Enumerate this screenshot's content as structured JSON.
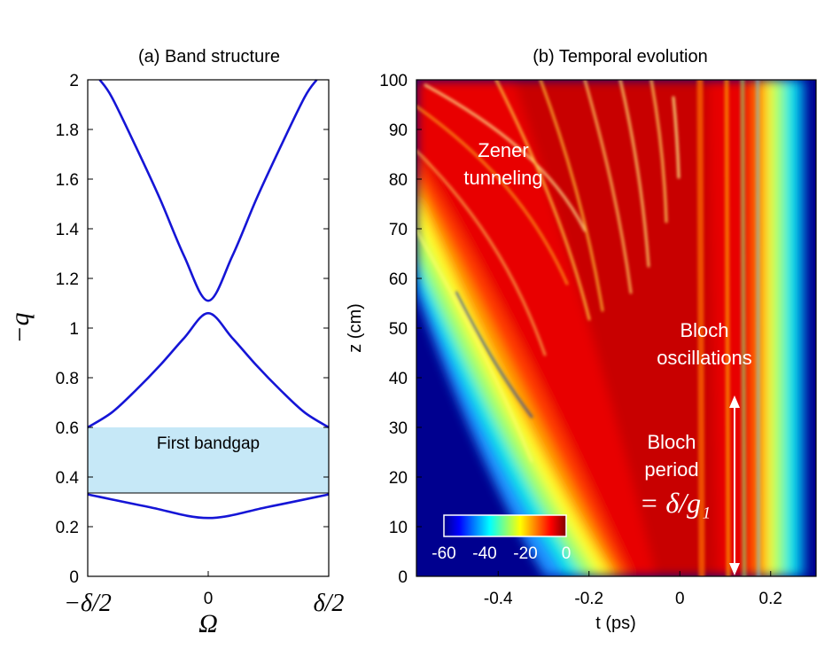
{
  "chart_data": [
    {
      "type": "line",
      "title": "(a) Band structure",
      "xlabel": "Ω",
      "ylabel": "−q",
      "xlim": [
        -0.5,
        0.5
      ],
      "ylim": [
        0,
        2
      ],
      "x_ticks": [
        {
          "value": -0.5,
          "label": "−δ/2"
        },
        {
          "value": 0,
          "label": "0"
        },
        {
          "value": 0.5,
          "label": "δ/2"
        }
      ],
      "y_ticks": [
        "0",
        "0.2",
        "0.4",
        "0.6",
        "0.8",
        "1",
        "1.2",
        "1.4",
        "1.6",
        "1.8",
        "2"
      ],
      "y_tick_values": [
        0,
        0.2,
        0.4,
        0.6,
        0.8,
        1,
        1.2,
        1.4,
        1.6,
        1.8,
        2
      ],
      "series_color": "#1515d6",
      "series": [
        {
          "x": [
            -0.5,
            -0.25,
            0,
            0.25,
            0.5
          ],
          "y": [
            0.33,
            0.28,
            0.235,
            0.28,
            0.33
          ]
        },
        {
          "x": [
            -0.5,
            -0.4,
            -0.3,
            -0.2,
            -0.1,
            0,
            0.1,
            0.2,
            0.3,
            0.4,
            0.5
          ],
          "y": [
            0.6,
            0.66,
            0.75,
            0.85,
            0.96,
            1.06,
            0.96,
            0.85,
            0.75,
            0.66,
            0.6
          ]
        },
        {
          "x": [
            -0.45,
            -0.4,
            -0.3,
            -0.2,
            -0.1,
            0,
            0.1,
            0.2,
            0.3,
            0.4,
            0.45
          ],
          "y": [
            2.0,
            1.93,
            1.73,
            1.52,
            1.29,
            1.11,
            1.29,
            1.52,
            1.73,
            1.93,
            2.0
          ]
        }
      ],
      "bandgap": {
        "label": "First bandgap",
        "y_min": 0.34,
        "y_max": 0.6,
        "color": "#c6e8f7"
      }
    },
    {
      "type": "heatmap",
      "title": "(b) Temporal evolution",
      "xlabel": "t (ps)",
      "ylabel": "z (cm)",
      "xlim": [
        -0.58,
        0.3
      ],
      "ylim": [
        0,
        100
      ],
      "x_ticks": [
        "-0.4",
        "-0.2",
        "0",
        "0.2"
      ],
      "x_tick_values": [
        -0.4,
        -0.2,
        0,
        0.2
      ],
      "y_ticks": [
        "0",
        "10",
        "20",
        "30",
        "40",
        "50",
        "60",
        "70",
        "80",
        "90",
        "100"
      ],
      "y_tick_values": [
        0,
        10,
        20,
        30,
        40,
        50,
        60,
        70,
        80,
        90,
        100
      ],
      "colorbar": {
        "ticks": [
          "-60",
          "-40",
          "-20",
          "0"
        ],
        "tick_values": [
          -60,
          -40,
          -20,
          0
        ],
        "range": [
          -60,
          0
        ]
      },
      "annotations": [
        {
          "lines": [
            "Zener",
            "tunneling"
          ]
        },
        {
          "lines": [
            "Bloch",
            "oscillations"
          ]
        },
        {
          "lines": [
            "Bloch",
            "period"
          ]
        },
        {
          "math": "= δ/g₁"
        }
      ]
    }
  ]
}
